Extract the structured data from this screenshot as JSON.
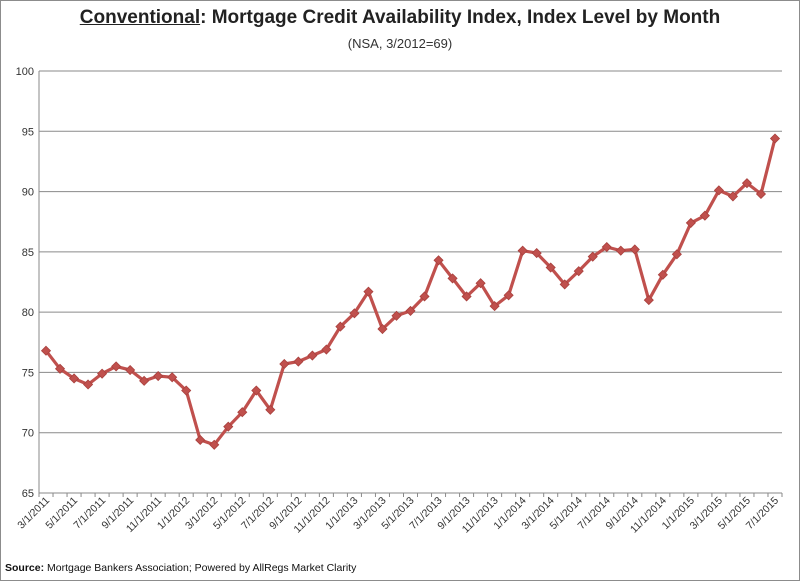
{
  "chart_data": {
    "type": "line",
    "title_underlined": "Conventional",
    "title_rest": ": Mortgage Credit Availability Index, Index Level by Month",
    "subtitle": "(NSA, 3/2012=69)",
    "ylim": [
      65,
      100
    ],
    "yticks": [
      65,
      70,
      75,
      80,
      85,
      90,
      95,
      100
    ],
    "grid": true,
    "line_color": "#c0504d",
    "x": [
      "3/1/2011",
      "4/1/2011",
      "5/1/2011",
      "6/1/2011",
      "7/1/2011",
      "8/1/2011",
      "9/1/2011",
      "10/1/2011",
      "11/1/2011",
      "12/1/2011",
      "1/1/2012",
      "2/1/2012",
      "3/1/2012",
      "4/1/2012",
      "5/1/2012",
      "6/1/2012",
      "7/1/2012",
      "8/1/2012",
      "9/1/2012",
      "10/1/2012",
      "11/1/2012",
      "12/1/2012",
      "1/1/2013",
      "2/1/2013",
      "3/1/2013",
      "4/1/2013",
      "5/1/2013",
      "6/1/2013",
      "7/1/2013",
      "8/1/2013",
      "9/1/2013",
      "10/1/2013",
      "11/1/2013",
      "12/1/2013",
      "1/1/2014",
      "2/1/2014",
      "3/1/2014",
      "4/1/2014",
      "5/1/2014",
      "6/1/2014",
      "7/1/2014",
      "8/1/2014",
      "9/1/2014",
      "10/1/2014",
      "11/1/2014",
      "12/1/2014",
      "1/1/2015",
      "2/1/2015",
      "3/1/2015",
      "4/1/2015",
      "5/1/2015",
      "6/1/2015",
      "7/1/2015"
    ],
    "values": [
      76.8,
      75.3,
      74.5,
      74.0,
      74.9,
      75.5,
      75.2,
      74.3,
      74.7,
      74.6,
      73.5,
      69.4,
      69.0,
      70.5,
      71.7,
      73.5,
      71.9,
      75.7,
      75.9,
      76.4,
      76.9,
      78.8,
      79.9,
      81.7,
      78.6,
      79.7,
      80.1,
      81.3,
      84.3,
      82.8,
      81.3,
      82.4,
      80.5,
      81.4,
      85.1,
      84.9,
      83.7,
      82.3,
      83.4,
      84.6,
      85.4,
      85.1,
      85.2,
      81.0,
      83.1,
      84.8,
      87.4,
      88.0,
      90.1,
      89.6,
      90.7,
      89.8,
      94.4
    ],
    "xtick_labels": [
      "3/1/2011",
      "5/1/2011",
      "7/1/2011",
      "9/1/2011",
      "11/1/2011",
      "1/1/2012",
      "3/1/2012",
      "5/1/2012",
      "7/1/2012",
      "9/1/2012",
      "11/1/2012",
      "1/1/2013",
      "3/1/2013",
      "5/1/2013",
      "7/1/2013",
      "9/1/2013",
      "11/1/2013",
      "1/1/2014",
      "3/1/2014",
      "5/1/2014",
      "7/1/2014",
      "9/1/2014",
      "11/1/2014",
      "1/1/2015",
      "3/1/2015",
      "5/1/2015",
      "7/1/2015"
    ]
  },
  "source": {
    "label": "Source:",
    "text": " Mortgage Bankers Association; Powered by AllRegs Market Clarity"
  }
}
